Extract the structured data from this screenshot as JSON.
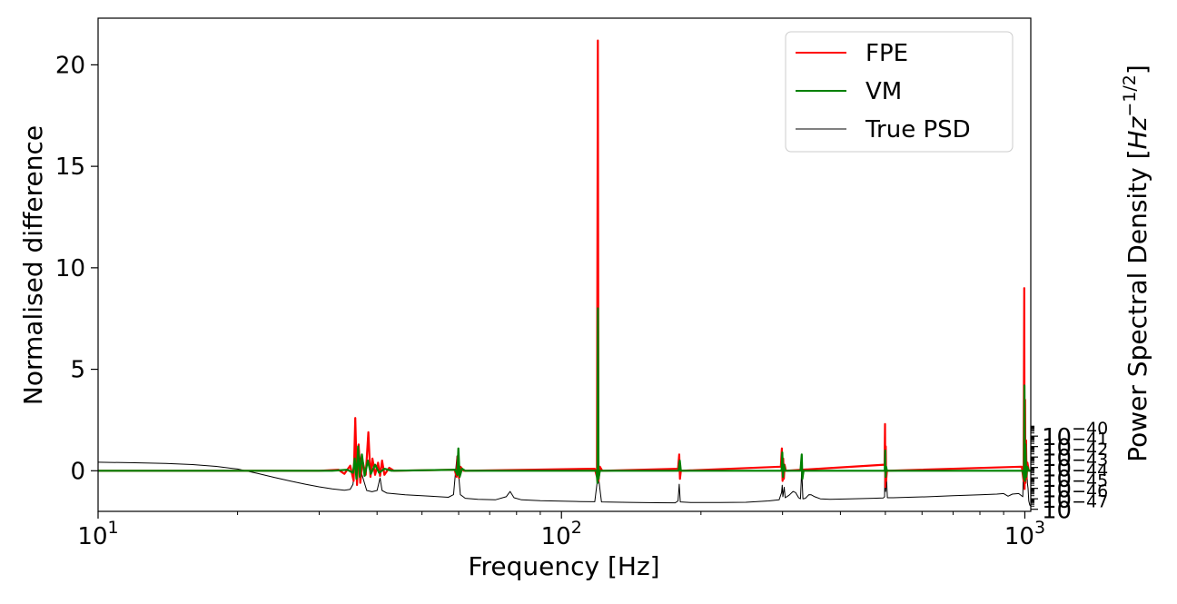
{
  "chart_data": {
    "type": "line",
    "xlabel": "Frequency [Hz]",
    "x_scale": "log",
    "xlim": [
      10,
      1030
    ],
    "x_ticks": [
      {
        "value": 10,
        "base": "10",
        "exp": "1"
      },
      {
        "value": 100,
        "base": "10",
        "exp": "2"
      },
      {
        "value": 1000,
        "base": "10",
        "exp": "3"
      }
    ],
    "y_left": {
      "label": "Normalised difference",
      "ylim": [
        -2,
        22.3
      ],
      "ticks": [
        "0",
        "5",
        "10",
        "15",
        "20"
      ],
      "tick_values": [
        0,
        5,
        10,
        15,
        20
      ]
    },
    "y_right": {
      "label_prefix": "Power Spectral Density [",
      "label_unit_base": "Hz",
      "label_unit_exp": "−1/2",
      "label_suffix": "]",
      "scale": "log",
      "ylim_exp": [
        -47.2,
        0
      ],
      "ticks": [
        {
          "exp_value": -47,
          "base": "10",
          "exp": "−47"
        },
        {
          "exp_value": -46,
          "base": "10",
          "exp": "−46"
        },
        {
          "exp_value": -45,
          "base": "10",
          "exp": "−45"
        },
        {
          "exp_value": -44,
          "base": "10",
          "exp": "−44"
        },
        {
          "exp_value": -43,
          "base": "10",
          "exp": "−43"
        },
        {
          "exp_value": -42,
          "base": "10",
          "exp": "−42"
        },
        {
          "exp_value": -41,
          "base": "10",
          "exp": "−41"
        },
        {
          "exp_value": -40,
          "base": "10",
          "exp": "−40"
        }
      ]
    },
    "legend": {
      "placement": "top-right",
      "entries": [
        {
          "label": "FPE",
          "color": "#ff0000"
        },
        {
          "label": "VM",
          "color": "#008000"
        },
        {
          "label": "True PSD",
          "color": "#000000"
        }
      ]
    },
    "series": [
      {
        "name": "True PSD",
        "axis": "right",
        "color": "#000000",
        "points": [
          [
            10,
            -42.5
          ],
          [
            12,
            -42.55
          ],
          [
            14,
            -42.62
          ],
          [
            16,
            -42.72
          ],
          [
            18,
            -42.9
          ],
          [
            20,
            -43.15
          ],
          [
            22,
            -43.55
          ],
          [
            24,
            -43.95
          ],
          [
            26,
            -44.3
          ],
          [
            28,
            -44.6
          ],
          [
            30,
            -44.85
          ],
          [
            32,
            -45.05
          ],
          [
            34,
            -45.18
          ],
          [
            35,
            -45.1
          ],
          [
            35.5,
            -44.6
          ],
          [
            36,
            -41.5
          ],
          [
            36.3,
            -43.0
          ],
          [
            36.6,
            -41.2
          ],
          [
            37,
            -43.5
          ],
          [
            38,
            -45.2
          ],
          [
            39,
            -45.32
          ],
          [
            40,
            -45.2
          ],
          [
            40.6,
            -44.0
          ],
          [
            41,
            -45.2
          ],
          [
            42,
            -45.45
          ],
          [
            46,
            -45.62
          ],
          [
            52,
            -45.75
          ],
          [
            57,
            -45.85
          ],
          [
            58.5,
            -45.6
          ],
          [
            59.5,
            -41.9
          ],
          [
            60.5,
            -45.6
          ],
          [
            62,
            -45.95
          ],
          [
            66,
            -46.05
          ],
          [
            72,
            -46.1
          ],
          [
            76,
            -45.8
          ],
          [
            77.5,
            -45.3
          ],
          [
            79,
            -45.9
          ],
          [
            82,
            -46.1
          ],
          [
            90,
            -46.18
          ],
          [
            100,
            -46.22
          ],
          [
            110,
            -46.26
          ],
          [
            118,
            -46.28
          ],
          [
            119.5,
            -44.3
          ],
          [
            120,
            -40.2
          ],
          [
            120.5,
            -44.3
          ],
          [
            122,
            -46.3
          ],
          [
            140,
            -46.34
          ],
          [
            160,
            -46.37
          ],
          [
            176,
            -46.38
          ],
          [
            178.5,
            -46.2
          ],
          [
            179.5,
            -44.6
          ],
          [
            180.5,
            -46.3
          ],
          [
            190,
            -46.36
          ],
          [
            220,
            -46.35
          ],
          [
            250,
            -46.33
          ],
          [
            280,
            -46.2
          ],
          [
            295,
            -46.1
          ],
          [
            298.5,
            -45.4
          ],
          [
            299.5,
            -44.7
          ],
          [
            300.5,
            -45.8
          ],
          [
            302.5,
            -44.9
          ],
          [
            304,
            -45.9
          ],
          [
            310,
            -45.65
          ],
          [
            316,
            -45.3
          ],
          [
            320,
            -45.4
          ],
          [
            325,
            -45.9
          ],
          [
            328,
            -46.0
          ],
          [
            330,
            -43.2
          ],
          [
            332,
            -46.0
          ],
          [
            336,
            -45.95
          ],
          [
            342,
            -45.6
          ],
          [
            346,
            -45.62
          ],
          [
            352,
            -45.8
          ],
          [
            362,
            -46.0
          ],
          [
            380,
            -46.05
          ],
          [
            420,
            -46.0
          ],
          [
            470,
            -45.95
          ],
          [
            495,
            -45.92
          ],
          [
            498,
            -45.8
          ],
          [
            499.5,
            -42.1
          ],
          [
            500.5,
            -45.3
          ],
          [
            503,
            -44.1
          ],
          [
            505,
            -45.9
          ],
          [
            520,
            -45.9
          ],
          [
            560,
            -45.85
          ],
          [
            620,
            -45.8
          ],
          [
            700,
            -45.7
          ],
          [
            800,
            -45.62
          ],
          [
            870,
            -45.55
          ],
          [
            900,
            -45.5
          ],
          [
            920,
            -45.75
          ],
          [
            940,
            -45.55
          ],
          [
            970,
            -45.5
          ],
          [
            990,
            -45.8
          ],
          [
            997,
            -40.2
          ],
          [
            999,
            -44.0
          ],
          [
            1001,
            -39.7
          ],
          [
            1002,
            -41.5
          ],
          [
            1004,
            -40.4
          ],
          [
            1006,
            -41.8
          ],
          [
            1008,
            -40.5
          ],
          [
            1010,
            -43.2
          ],
          [
            1013,
            -44.5
          ],
          [
            1016,
            -45.0
          ],
          [
            1020,
            -46.2
          ],
          [
            1025,
            -46.6
          ],
          [
            1030,
            -46.7
          ]
        ]
      },
      {
        "name": "FPE",
        "axis": "left",
        "color": "#ff0000",
        "points": [
          [
            10,
            0
          ],
          [
            30,
            0
          ],
          [
            33,
            0.05
          ],
          [
            34,
            -0.15
          ],
          [
            35,
            0.25
          ],
          [
            35.6,
            -0.5
          ],
          [
            35.9,
            2.6
          ],
          [
            36.2,
            -0.7
          ],
          [
            36.5,
            1.3
          ],
          [
            36.8,
            -0.6
          ],
          [
            37.2,
            0.5
          ],
          [
            37.8,
            -0.2
          ],
          [
            38.3,
            1.9
          ],
          [
            38.7,
            -0.3
          ],
          [
            39.1,
            0.6
          ],
          [
            39.6,
            -0.2
          ],
          [
            40.2,
            0.4
          ],
          [
            40.6,
            -0.25
          ],
          [
            41,
            0.5
          ],
          [
            41.5,
            -0.2
          ],
          [
            42.5,
            0.15
          ],
          [
            43.5,
            0
          ],
          [
            58.8,
            0.05
          ],
          [
            59.4,
            -0.3
          ],
          [
            59.7,
            0.7
          ],
          [
            60.1,
            -0.35
          ],
          [
            60.5,
            0.2
          ],
          [
            61.5,
            0
          ],
          [
            118,
            0.1
          ],
          [
            119.3,
            -0.3
          ],
          [
            119.8,
            21.2
          ],
          [
            120.2,
            -0.5
          ],
          [
            121,
            0.2
          ],
          [
            122.5,
            0
          ],
          [
            178.5,
            0.1
          ],
          [
            179.5,
            0.8
          ],
          [
            180.2,
            -0.4
          ],
          [
            181,
            0
          ],
          [
            297.5,
            0.2
          ],
          [
            299,
            1.1
          ],
          [
            300,
            -0.5
          ],
          [
            301,
            0.6
          ],
          [
            302,
            -0.4
          ],
          [
            303,
            0.3
          ],
          [
            305,
            0
          ],
          [
            498,
            0.3
          ],
          [
            499.2,
            2.3
          ],
          [
            500.2,
            -0.8
          ],
          [
            501,
            1.2
          ],
          [
            502,
            -0.5
          ],
          [
            504,
            0
          ],
          [
            985,
            0.2
          ],
          [
            994,
            -0.5
          ],
          [
            997,
            9.0
          ],
          [
            999,
            -0.9
          ],
          [
            1001,
            3.5
          ],
          [
            1003,
            -0.6
          ],
          [
            1006,
            1.5
          ],
          [
            1009,
            -0.4
          ],
          [
            1013,
            0.4
          ],
          [
            1020,
            0
          ],
          [
            1030,
            0
          ]
        ]
      },
      {
        "name": "VM",
        "axis": "left",
        "color": "#008000",
        "points": [
          [
            10,
            0
          ],
          [
            32,
            0
          ],
          [
            34.5,
            0.05
          ],
          [
            35.5,
            -0.1
          ],
          [
            35.8,
            0.6
          ],
          [
            36.1,
            -0.4
          ],
          [
            36.4,
            1.2
          ],
          [
            36.7,
            -0.3
          ],
          [
            37.1,
            0.8
          ],
          [
            37.6,
            -0.25
          ],
          [
            38.2,
            0.5
          ],
          [
            38.8,
            -0.15
          ],
          [
            39.6,
            0.3
          ],
          [
            40.4,
            -0.1
          ],
          [
            41.5,
            0.1
          ],
          [
            43,
            0
          ],
          [
            59,
            0.05
          ],
          [
            59.6,
            -0.2
          ],
          [
            59.9,
            1.1
          ],
          [
            60.3,
            -0.3
          ],
          [
            61,
            0.1
          ],
          [
            62,
            0
          ],
          [
            119,
            0
          ],
          [
            119.6,
            -0.6
          ],
          [
            119.9,
            8.0
          ],
          [
            120.2,
            -0.4
          ],
          [
            121,
            0
          ],
          [
            179,
            0
          ],
          [
            180,
            0.5
          ],
          [
            181,
            0
          ],
          [
            298.5,
            0
          ],
          [
            299.6,
            0.9
          ],
          [
            300.6,
            -0.3
          ],
          [
            302,
            0.3
          ],
          [
            304,
            0
          ],
          [
            328,
            0
          ],
          [
            330,
            0.8
          ],
          [
            331,
            -0.4
          ],
          [
            333,
            0
          ],
          [
            498.5,
            0
          ],
          [
            499.7,
            1.0
          ],
          [
            500.6,
            -0.3
          ],
          [
            502,
            0.2
          ],
          [
            504,
            0
          ],
          [
            990,
            0
          ],
          [
            996,
            -0.4
          ],
          [
            998,
            4.2
          ],
          [
            1000,
            -0.5
          ],
          [
            1003,
            1.3
          ],
          [
            1007,
            -0.3
          ],
          [
            1012,
            0.2
          ],
          [
            1020,
            0
          ],
          [
            1030,
            0
          ]
        ]
      }
    ]
  }
}
